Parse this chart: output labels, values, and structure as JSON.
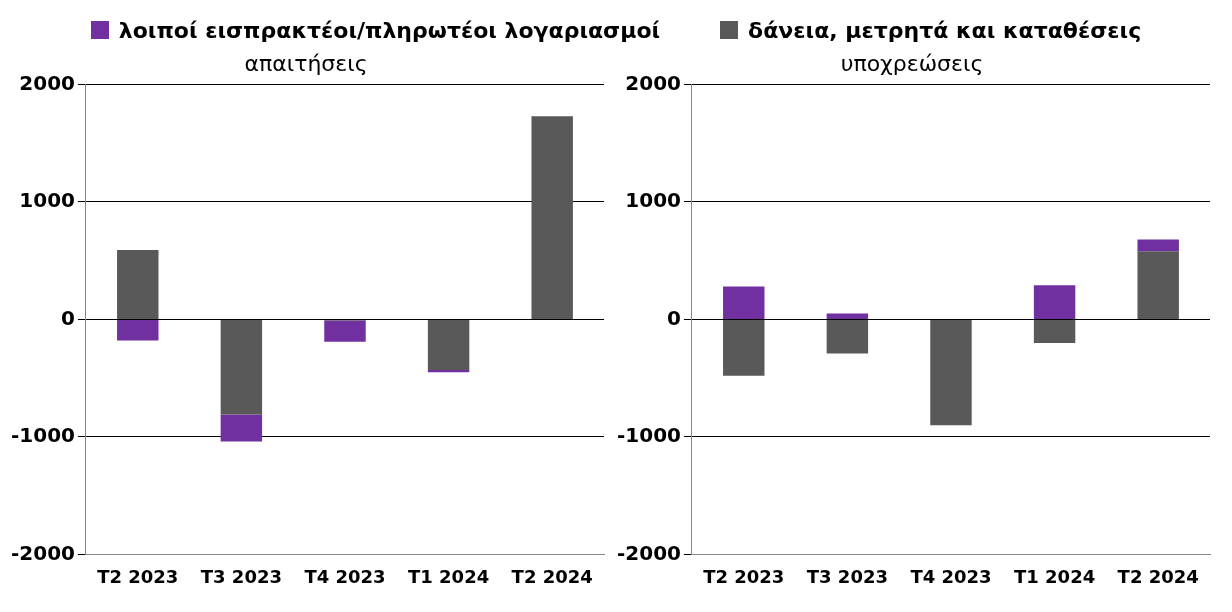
{
  "chart_data": [
    {
      "type": "bar",
      "title": "απαιτήσεις",
      "categories": [
        "T2 2023",
        "T3 2023",
        "T4 2023",
        "T1 2024",
        "T2 2024"
      ],
      "stacked": true,
      "legend": "top",
      "grid": "y",
      "ylim": [
        -2000,
        2000
      ],
      "yticks": [
        -2000,
        -1000,
        0,
        1000,
        2000
      ],
      "series": [
        {
          "name": "δάνεια, μετρητά και καταθέσεις",
          "color": "#595959",
          "values": [
            590,
            -810,
            -10,
            -430,
            1730
          ]
        },
        {
          "name": "λοιποί εισπρακτέοι/πληρωτέοι λογαριασμοί",
          "color": "#7030a0",
          "values": [
            -180,
            -230,
            -180,
            -20,
            0
          ]
        }
      ]
    },
    {
      "type": "bar",
      "title": "υποχρεώσεις",
      "categories": [
        "T2 2023",
        "T3 2023",
        "T4 2023",
        "T1 2024",
        "T2 2024"
      ],
      "stacked": true,
      "grid": "y",
      "ylim": [
        -2000,
        2000
      ],
      "yticks": [
        -2000,
        -1000,
        0,
        1000,
        2000
      ],
      "series": [
        {
          "color": "#595959",
          "values": [
            -480,
            -290,
            -900,
            -200,
            580
          ]
        },
        {
          "color": "#7030a0",
          "values": [
            280,
            50,
            0,
            290,
            100
          ]
        }
      ]
    }
  ]
}
